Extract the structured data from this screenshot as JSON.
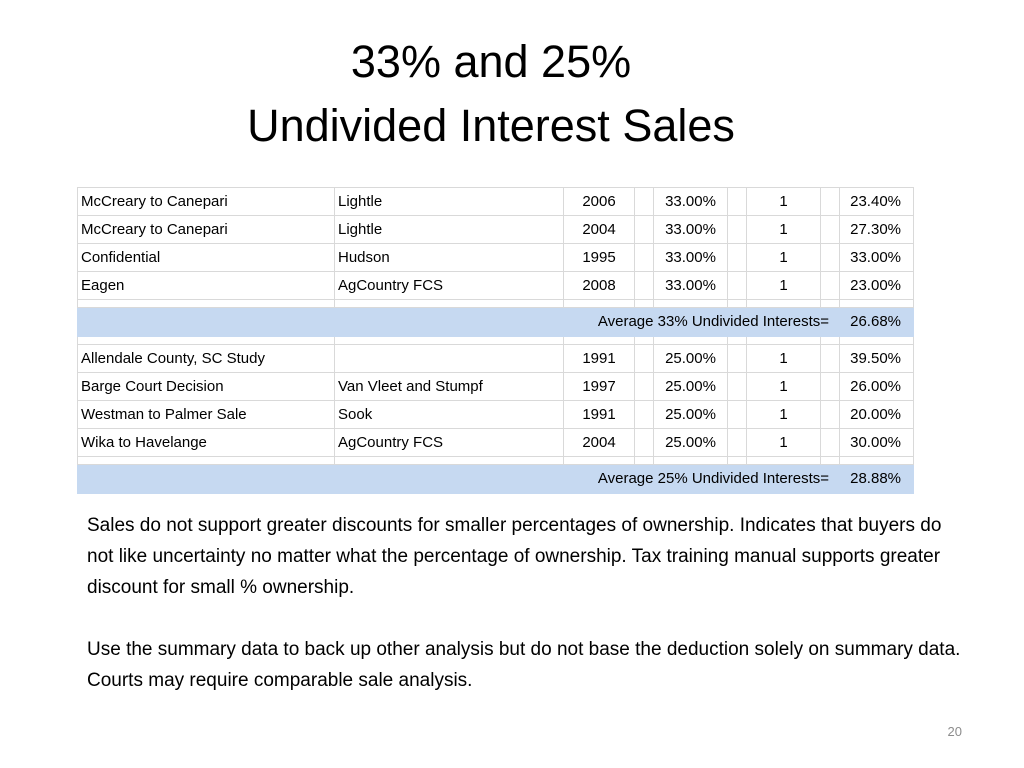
{
  "title": {
    "line1": "33% and 25%",
    "line2": "Undivided Interest Sales"
  },
  "table": {
    "group1_rows": [
      [
        "McCreary to Canepari",
        "Lightle",
        "2006",
        "33.00%",
        "1",
        "23.40%"
      ],
      [
        "McCreary to Canepari",
        "Lightle",
        "2004",
        "33.00%",
        "1",
        "27.30%"
      ],
      [
        "Confidential",
        "Hudson",
        "1995",
        "33.00%",
        "1",
        "33.00%"
      ],
      [
        "Eagen",
        "AgCountry FCS",
        "2008",
        "33.00%",
        "1",
        "23.00%"
      ]
    ],
    "group1_average": {
      "label": "Average 33% Undivided Interests=",
      "value": "26.68%"
    },
    "group2_rows": [
      [
        "Allendale County, SC Study",
        "",
        "1991",
        "25.00%",
        "1",
        "39.50%"
      ],
      [
        "Barge Court Decision",
        "Van Vleet and Stumpf",
        "1997",
        "25.00%",
        "1",
        "26.00%"
      ],
      [
        "Westman to Palmer Sale",
        "Sook",
        "1991",
        "25.00%",
        "1",
        "20.00%"
      ],
      [
        "Wika to Havelange",
        "AgCountry FCS",
        "2004",
        "25.00%",
        "1",
        "30.00%"
      ]
    ],
    "group2_average": {
      "label": "Average 25% Undivided Interests=",
      "value": "28.88%"
    }
  },
  "notes": {
    "paragraph1": "Sales do not support greater discounts for smaller percentages of ownership. Indicates that buyers do not like uncertainty no matter what the percentage of ownership. Tax training manual supports greater discount for small % ownership.",
    "paragraph2": "Use the summary data to back up other analysis but do not base the deduction solely on summary data. Courts may require comparable sale analysis."
  },
  "page_number": "20",
  "colors": {
    "average_row_fill": "#c6d9f1",
    "grid_line": "#d9d9d9"
  }
}
